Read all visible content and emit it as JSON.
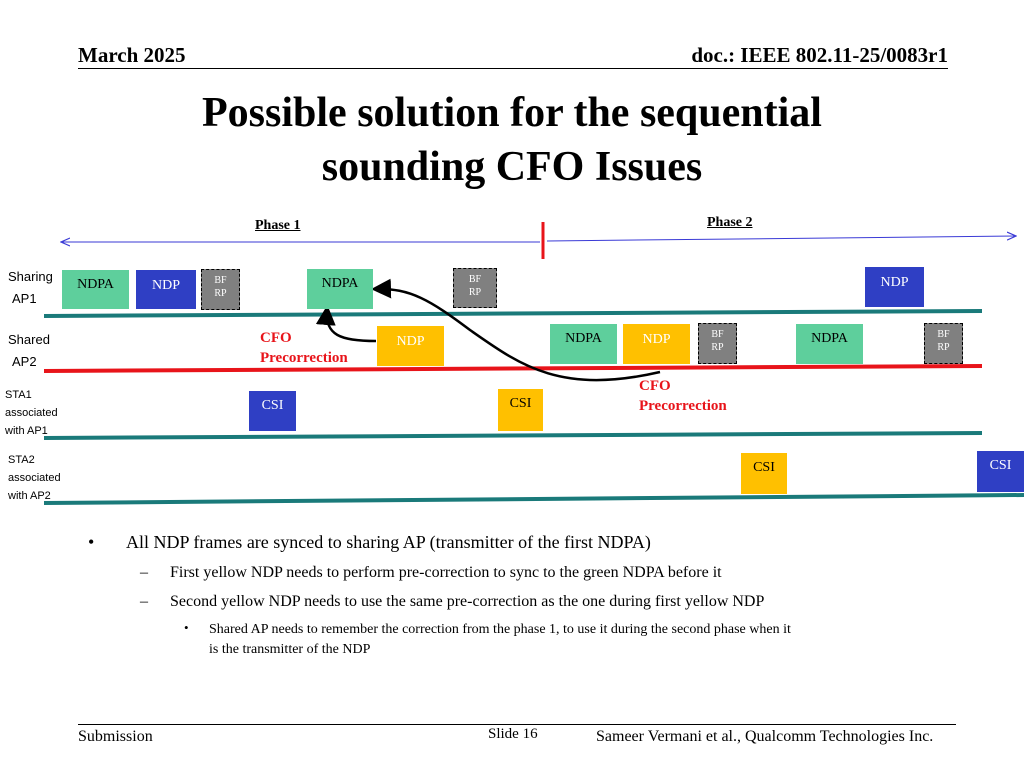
{
  "header": {
    "date": "March 2025",
    "doc": "doc.: IEEE 802.11-25/0083r1"
  },
  "title": {
    "line1": "Possible solution for the sequential",
    "line2": "sounding CFO Issues"
  },
  "diagram": {
    "phase1": "Phase 1",
    "phase2": "Phase 2",
    "rows": {
      "sharing_line1": "Sharing",
      "sharing_line2": "AP1",
      "shared_line1": "Shared",
      "shared_line2": "AP2",
      "sta1_line1": "STA1",
      "sta1_line2": "associated",
      "sta1_line3": "with AP1",
      "sta2_line1": "STA2",
      "sta2_line2": "associated",
      "sta2_line3": "with AP2"
    },
    "frames": {
      "ndpa": "NDPA",
      "ndp": "NDP",
      "bf_line1": "BF",
      "bf_line2": "RP",
      "csi": "CSI"
    },
    "cfo_line1": "CFO",
    "cfo_line2": "Precorrection",
    "colors": {
      "ndpa_green": "#5ecf9c",
      "ndp_blue": "#2f3fc4",
      "ndp_yellow": "#ffc000",
      "bfrp_gray": "#808080",
      "ap1_line_teal": "#1a7a7a",
      "ap2_line_red": "#e8141a",
      "phase_arrow_blue": "#3a3ad6",
      "cfo_red": "#e8141a"
    }
  },
  "bullets": {
    "b1": "All NDP frames are synced to sharing AP (transmitter of the first NDPA)",
    "b1_1": "First yellow NDP needs to perform pre-correction to sync to the green NDPA before it",
    "b1_2": "Second yellow NDP needs to use the same pre-correction as the one during first yellow NDP",
    "b1_2_1_line1": "Shared AP needs to remember the correction from the phase 1, to use it during the second phase when it",
    "b1_2_1_line2": "is the transmitter of the NDP"
  },
  "footer": {
    "left": "Submission",
    "center": "Slide 16",
    "right": "Sameer Vermani et al., Qualcomm Technologies Inc."
  }
}
